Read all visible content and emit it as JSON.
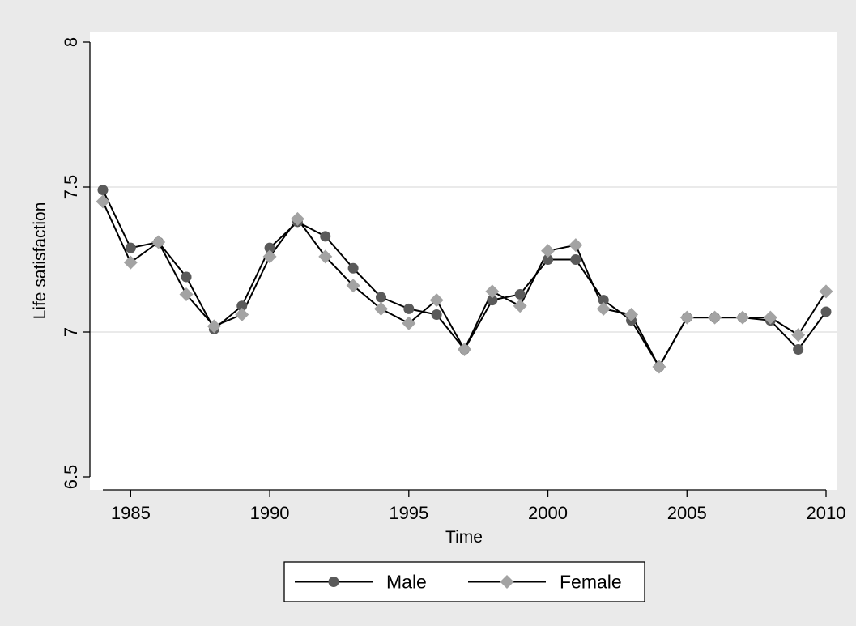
{
  "chart_data": {
    "type": "line",
    "xlabel": "Time",
    "ylabel": "Life satisfaction",
    "xlim": [
      1984,
      2010
    ],
    "ylim": [
      6.5,
      8
    ],
    "x_ticks": [
      1985,
      1990,
      1995,
      2000,
      2005,
      2010
    ],
    "y_ticks": [
      6.5,
      7,
      7.5,
      8
    ],
    "y_tick_labels": [
      "6.5",
      "7",
      "7.5",
      "8"
    ],
    "grid": "horizontal",
    "legend": "bottom",
    "x": [
      1984,
      1985,
      1986,
      1987,
      1988,
      1989,
      1990,
      1991,
      1992,
      1993,
      1994,
      1995,
      1996,
      1997,
      1998,
      1999,
      2000,
      2001,
      2002,
      2003,
      2004,
      2005,
      2006,
      2007,
      2008,
      2009,
      2010
    ],
    "series": [
      {
        "name": "Male",
        "marker": "circle",
        "color": "#5a5a5a",
        "values": [
          7.49,
          7.29,
          7.31,
          7.19,
          7.01,
          7.09,
          7.29,
          7.38,
          7.33,
          7.22,
          7.12,
          7.08,
          7.06,
          6.94,
          7.11,
          7.13,
          7.25,
          7.25,
          7.11,
          7.04,
          6.88,
          7.05,
          7.05,
          7.05,
          7.04,
          6.94,
          7.07
        ]
      },
      {
        "name": "Female",
        "marker": "diamond",
        "color": "#a3a3a3",
        "values": [
          7.45,
          7.24,
          7.31,
          7.13,
          7.02,
          7.06,
          7.26,
          7.39,
          7.26,
          7.16,
          7.08,
          7.03,
          7.11,
          6.94,
          7.14,
          7.09,
          7.28,
          7.3,
          7.08,
          7.06,
          6.88,
          7.05,
          7.05,
          7.05,
          7.05,
          6.99,
          7.14
        ]
      }
    ],
    "colors": {
      "outer_background": "#eaeaea",
      "plot_background": "#ffffff",
      "grid": "#e4e4e4",
      "line": "#000000"
    }
  }
}
